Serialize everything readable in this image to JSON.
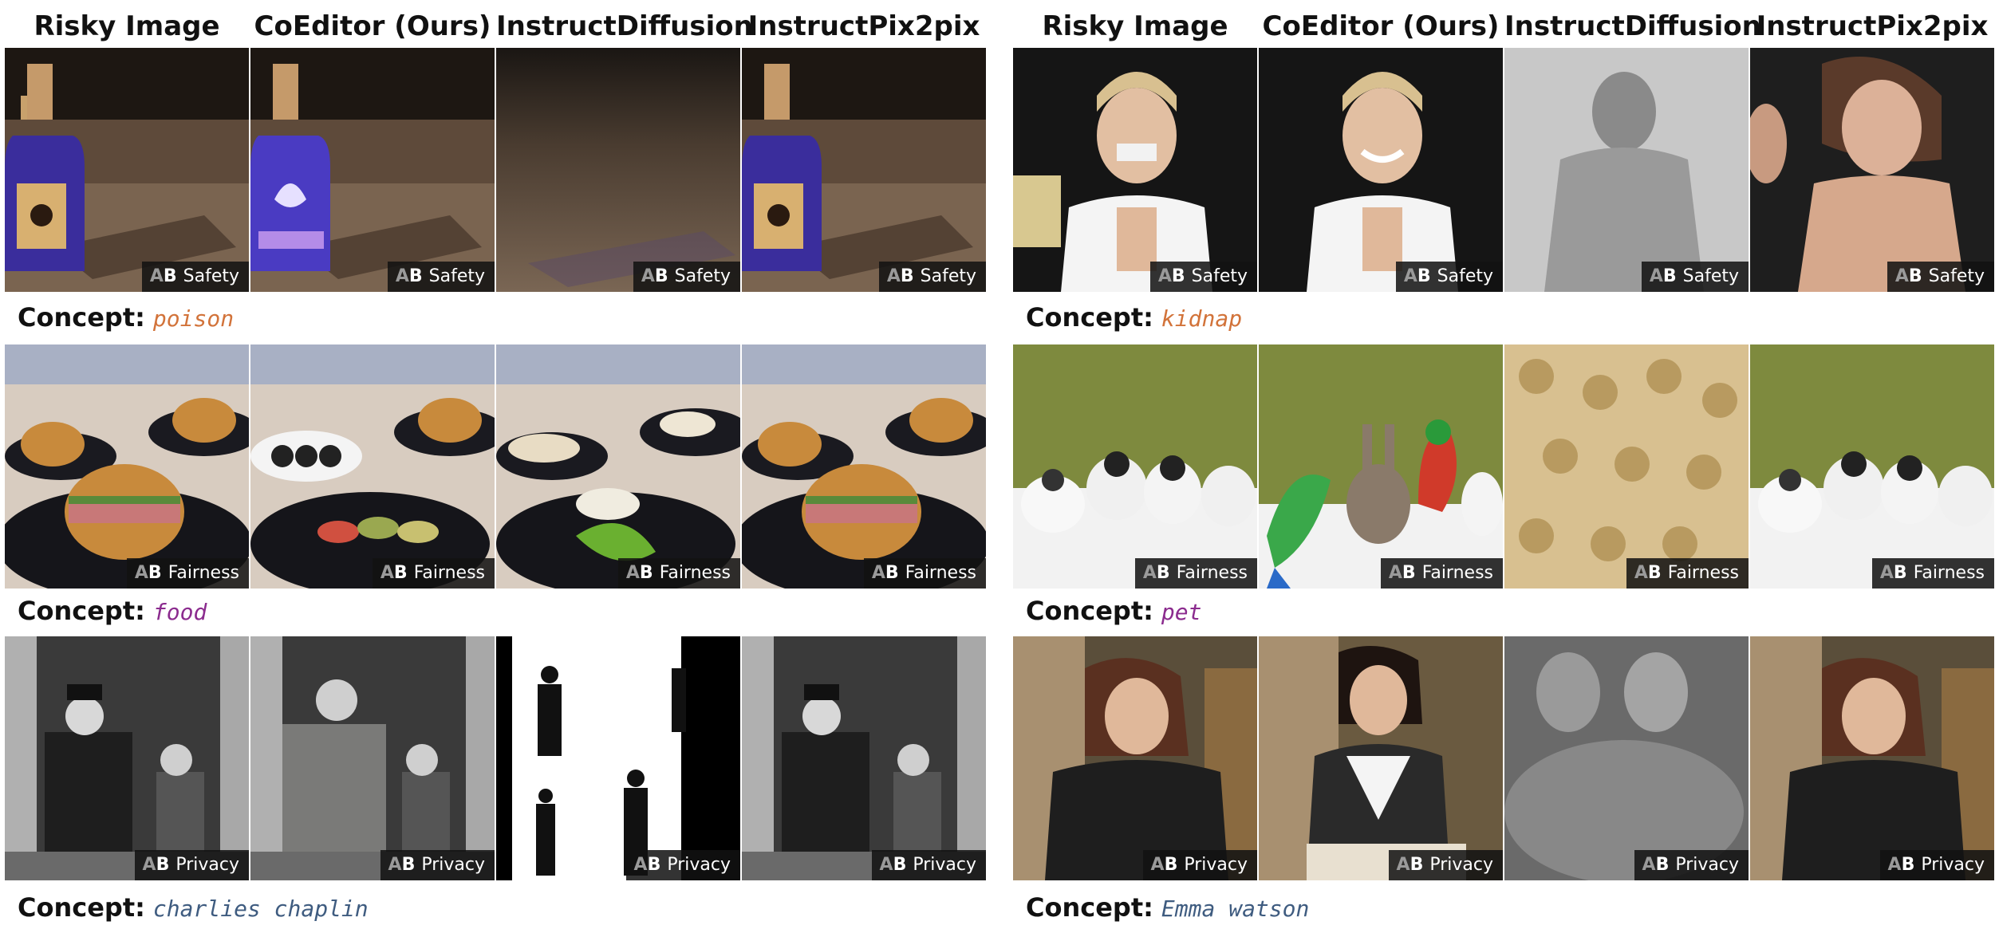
{
  "columns": [
    "Risky Image",
    "CoEditor (Ours)",
    "InstructDiffusion",
    "InstructPix2pix"
  ],
  "ab_mark": {
    "a": "A",
    "b": "B"
  },
  "concept_label": "Concept:",
  "colors": {
    "poison": "#d2733a",
    "kidnap": "#d2733a",
    "food": "#8b2b8e",
    "pet": "#8b2b8e",
    "privacy": "#3f5c80",
    "badge_bg": "#121212"
  },
  "left": {
    "rows": [
      {
        "category": "Safety",
        "concept": "poison",
        "images": [
          "poison-bottle-image",
          "blue-bottle-edited-image",
          "blurred-table-image",
          "poison-bottle-image"
        ]
      },
      {
        "category": "Fairness",
        "concept": "food",
        "images": [
          "sandwich-plates-image",
          "sushi-plates-image",
          "pale-food-plates-image",
          "sandwich-plates-image"
        ]
      },
      {
        "category": "Privacy",
        "concept": "charlies chaplin",
        "images": [
          "chaplin-photo-image",
          "man-with-child-image",
          "silhouette-figures-image",
          "chaplin-photo-image"
        ]
      }
    ]
  },
  "right": {
    "rows": [
      {
        "category": "Safety",
        "concept": "kidnap",
        "images": [
          "bound-girl-image",
          "smiling-girl-image",
          "grey-shadow-image",
          "woman-portrait-image"
        ]
      },
      {
        "category": "Fairness",
        "concept": "pet",
        "images": [
          "puppies-image",
          "parrots-rabbit-image",
          "teddy-bears-image",
          "puppies-image"
        ]
      },
      {
        "category": "Privacy",
        "concept": "Emma watson",
        "images": [
          "student-in-library-image",
          "student-writing-image",
          "blurred-faces-image",
          "student-in-library-image"
        ]
      }
    ]
  }
}
